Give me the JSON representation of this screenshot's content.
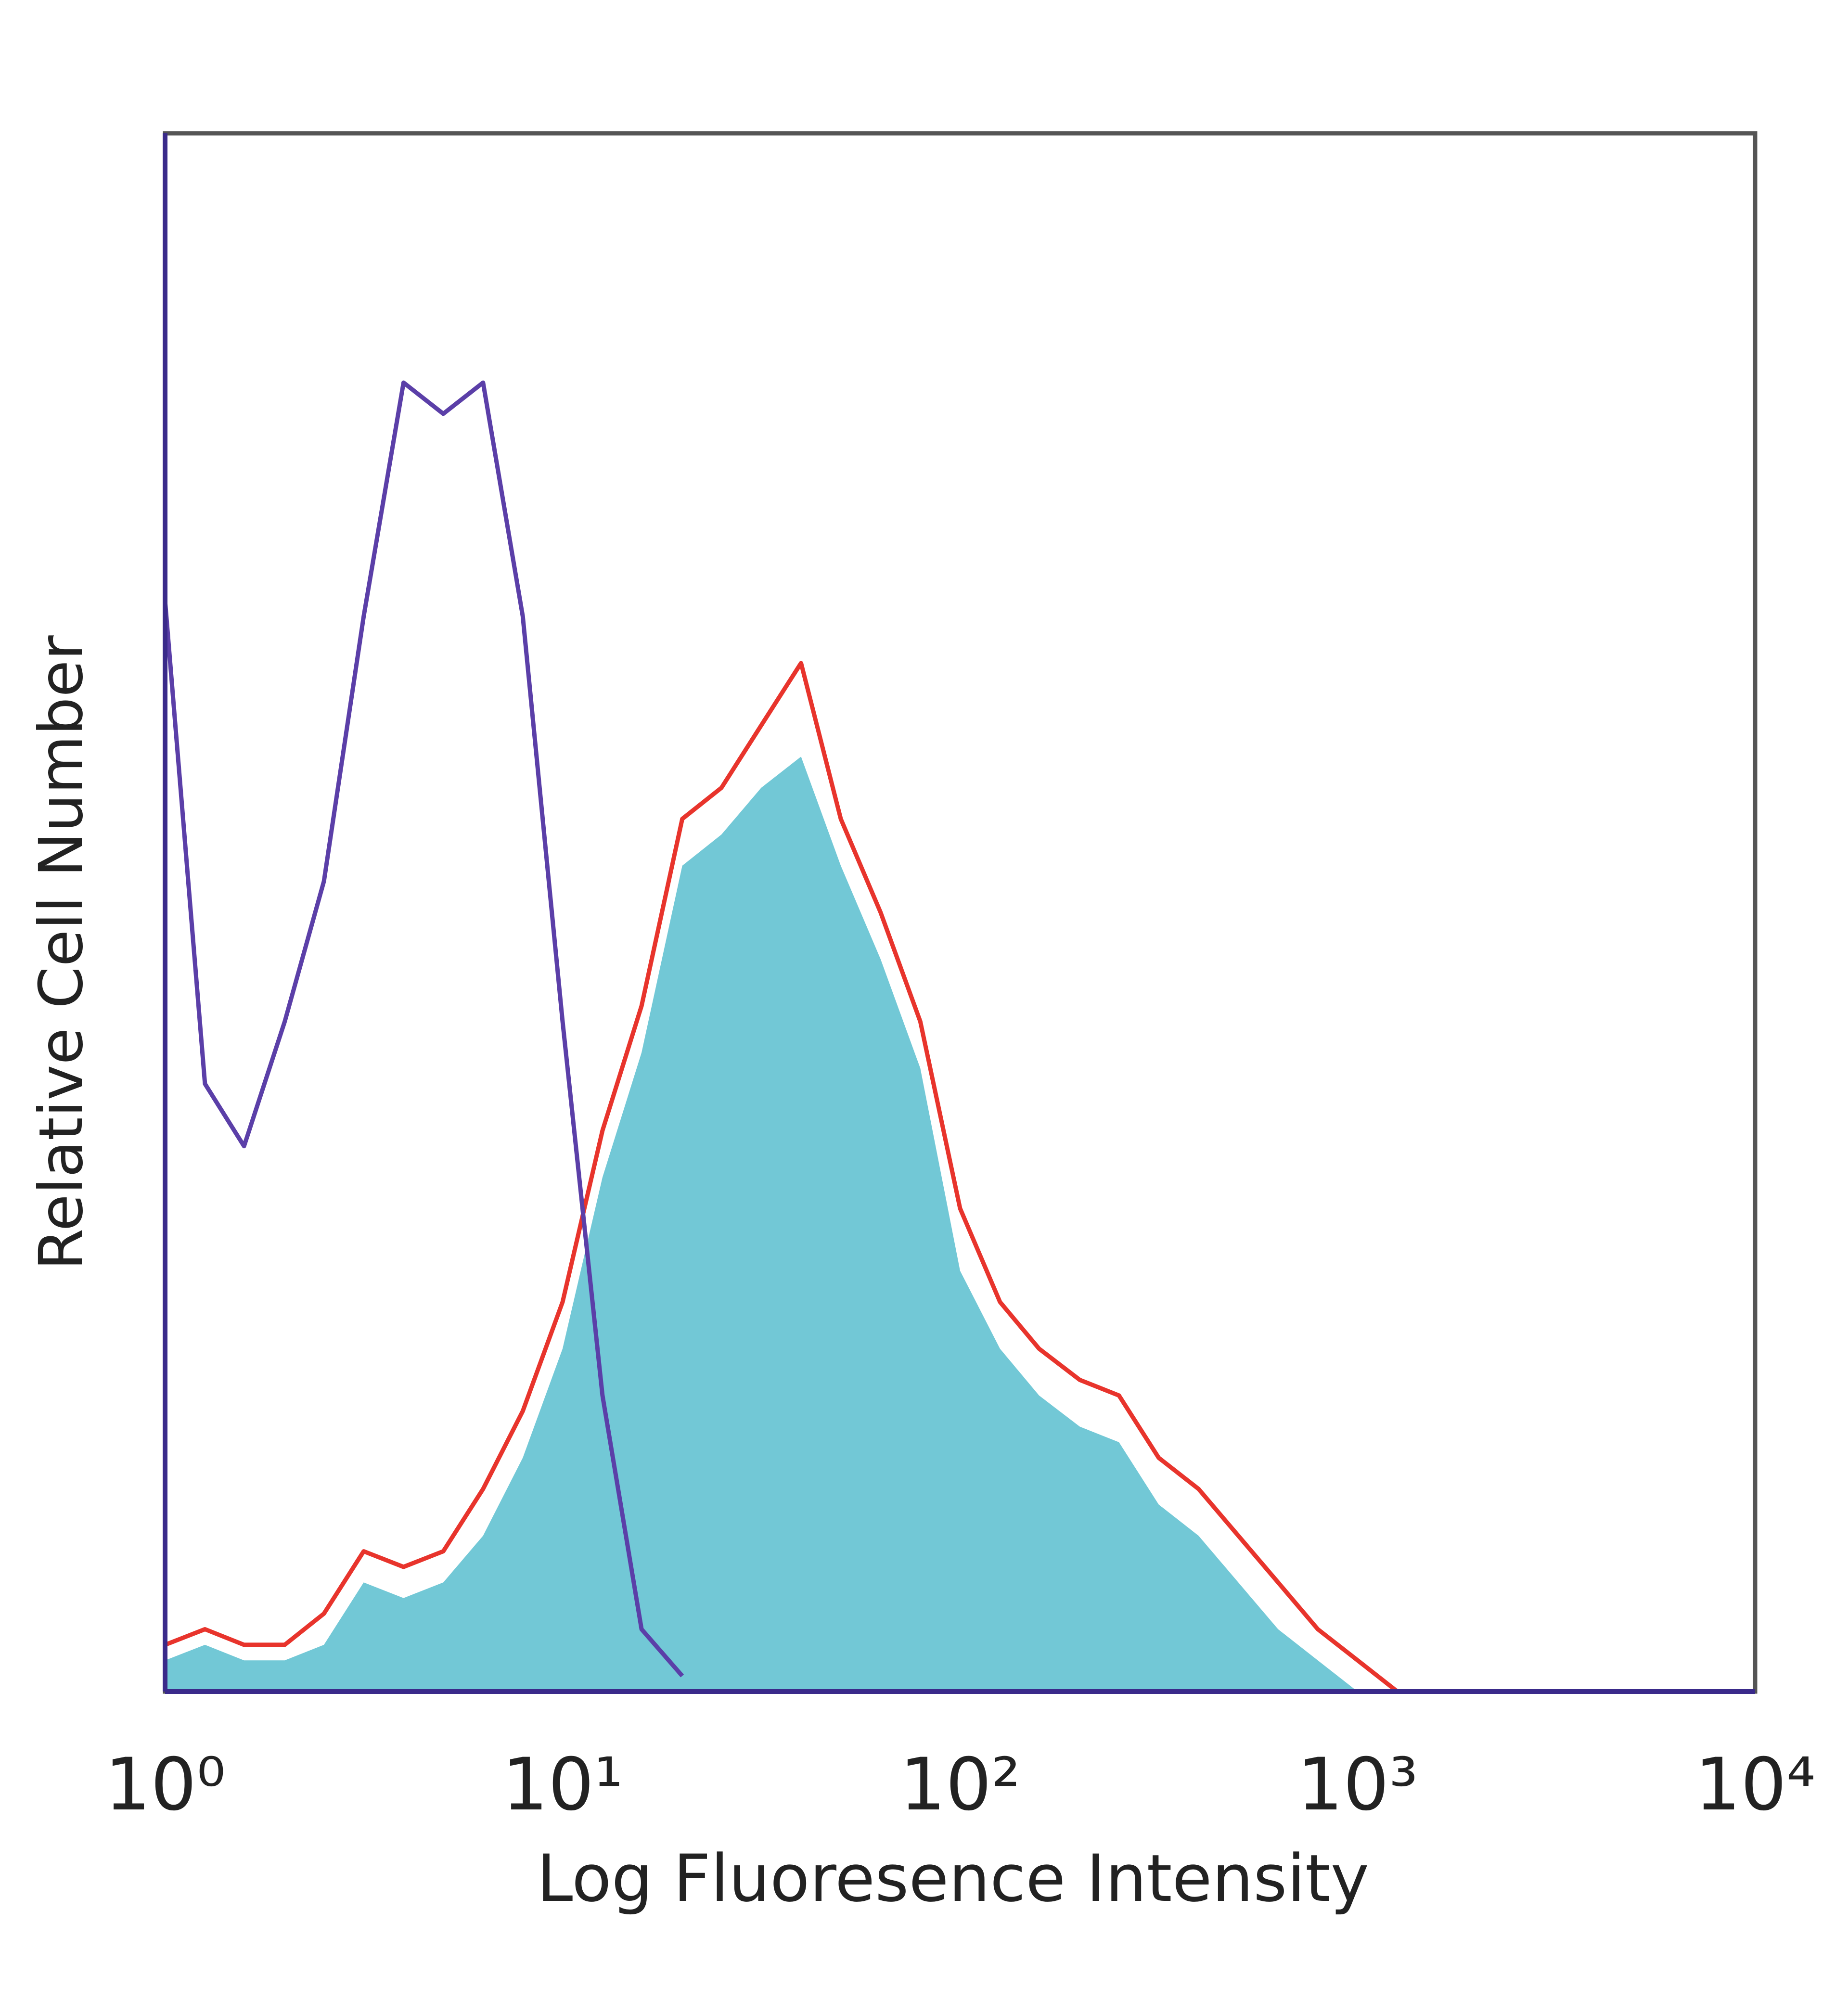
{
  "chart_data": {
    "type": "line",
    "xlabel": "Log Fluoresence Intensity",
    "ylabel": "Relative Cell Number",
    "xscale": "log",
    "xlim": [
      1,
      10000
    ],
    "xticks": [
      {
        "value": 1,
        "label": "10⁰"
      },
      {
        "value": 10,
        "label": "10¹"
      },
      {
        "value": 100,
        "label": "10²"
      },
      {
        "value": 1000,
        "label": "10³"
      },
      {
        "value": 10000,
        "label": "10⁴"
      }
    ],
    "ylim": [
      0,
      100
    ],
    "grid": false,
    "x": [
      1,
      1.26,
      1.58,
      2,
      2.51,
      3.16,
      3.98,
      5.01,
      6.31,
      7.94,
      10,
      12.6,
      15.8,
      20,
      25.1,
      31.6,
      39.8,
      50.1,
      63.1,
      79.4,
      100,
      126,
      158,
      200,
      251,
      316,
      398,
      501,
      631,
      794,
      1000,
      1259,
      1585
    ],
    "series": [
      {
        "color": "#72c8d6",
        "fill": true,
        "values": [
          2,
          3,
          2,
          2,
          3,
          7,
          6,
          7,
          10,
          15,
          22,
          33,
          41,
          53,
          55,
          58,
          60,
          53,
          47,
          40,
          27,
          22,
          19,
          17,
          16,
          12,
          10,
          7,
          4,
          2,
          0,
          0,
          0
        ]
      },
      {
        "color": "#e8342c",
        "fill": false,
        "values": [
          3,
          4,
          3,
          3,
          5,
          9,
          8,
          9,
          13,
          18,
          25,
          36,
          44,
          56,
          58,
          62,
          66,
          56,
          50,
          43,
          31,
          25,
          22,
          20,
          19,
          15,
          13,
          10,
          7,
          4,
          2,
          0,
          0
        ]
      },
      {
        "color": "#5b3fa8",
        "fill": false,
        "values": [
          70,
          39,
          35,
          43,
          52,
          69,
          84,
          82,
          84,
          69,
          43,
          19,
          4,
          1,
          null,
          null,
          null,
          null,
          null,
          null,
          null,
          null,
          null,
          null,
          null,
          null,
          null,
          null,
          null,
          null,
          null,
          null,
          null
        ]
      }
    ]
  }
}
